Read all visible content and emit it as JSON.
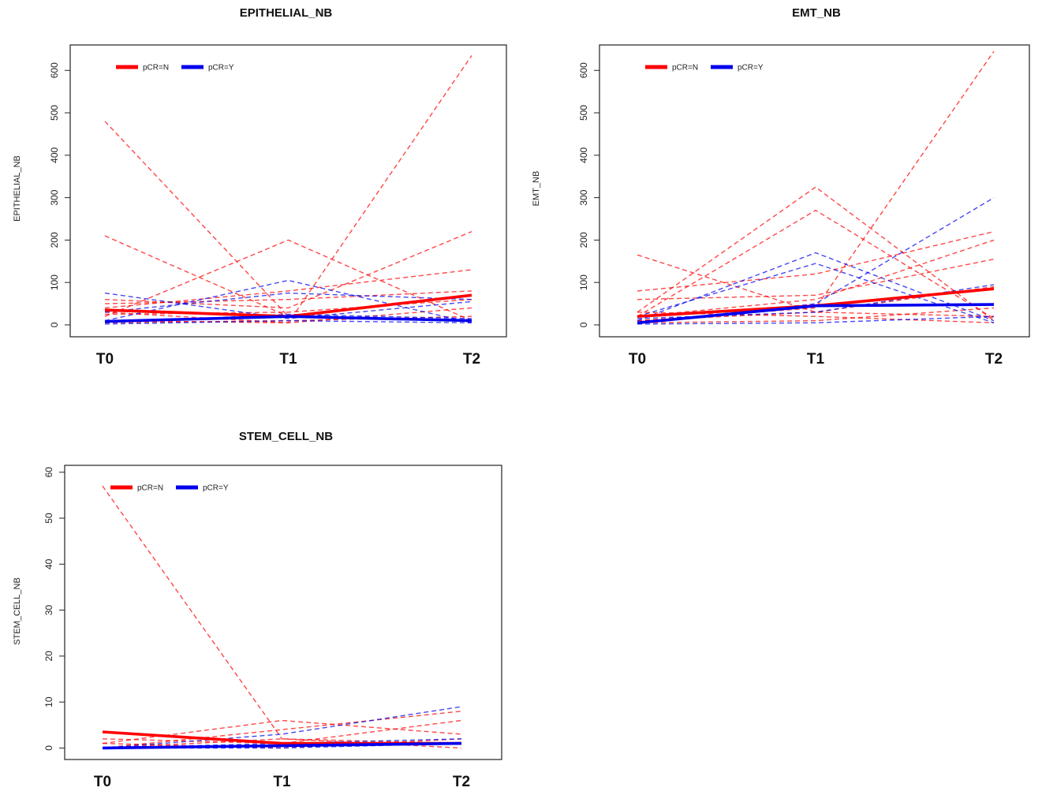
{
  "colors": {
    "group_n": "#ff0000",
    "group_y": "#0000ee"
  },
  "chart_data": [
    {
      "type": "line",
      "title": "EPITHELIAL_NB",
      "ylabel": "EPITHELIAL_NB",
      "categories": [
        "T0",
        "T1",
        "T2"
      ],
      "yticks": [
        0,
        100,
        200,
        300,
        400,
        500,
        600
      ],
      "ylim": [
        -28,
        660
      ],
      "legend": {
        "position": "top-left",
        "entries": [
          "pCR=N",
          "pCR=Y"
        ]
      },
      "grid": false,
      "series": [
        {
          "group": "N",
          "style": "mean",
          "values": [
            35,
            20,
            70
          ]
        },
        {
          "group": "Y",
          "style": "mean",
          "values": [
            8,
            20,
            10
          ]
        },
        {
          "group": "N",
          "style": "individual",
          "values": [
            480,
            20,
            10
          ]
        },
        {
          "group": "N",
          "style": "individual",
          "values": [
            210,
            20,
            10
          ]
        },
        {
          "group": "N",
          "style": "individual",
          "values": [
            20,
            200,
            10
          ]
        },
        {
          "group": "N",
          "style": "individual",
          "values": [
            30,
            5,
            635
          ]
        },
        {
          "group": "N",
          "style": "individual",
          "values": [
            60,
            40,
            220
          ]
        },
        {
          "group": "N",
          "style": "individual",
          "values": [
            40,
            80,
            130
          ]
        },
        {
          "group": "N",
          "style": "individual",
          "values": [
            50,
            60,
            80
          ]
        },
        {
          "group": "N",
          "style": "individual",
          "values": [
            25,
            30,
            60
          ]
        },
        {
          "group": "N",
          "style": "individual",
          "values": [
            10,
            5,
            40
          ]
        },
        {
          "group": "N",
          "style": "individual",
          "values": [
            5,
            10,
            20
          ]
        },
        {
          "group": "Y",
          "style": "individual",
          "values": [
            75,
            15,
            55
          ]
        },
        {
          "group": "Y",
          "style": "individual",
          "values": [
            10,
            105,
            5
          ]
        },
        {
          "group": "Y",
          "style": "individual",
          "values": [
            30,
            75,
            60
          ]
        },
        {
          "group": "Y",
          "style": "individual",
          "values": [
            5,
            25,
            15
          ]
        },
        {
          "group": "Y",
          "style": "individual",
          "values": [
            2,
            10,
            5
          ]
        }
      ]
    },
    {
      "type": "line",
      "title": "EMT_NB",
      "ylabel": "EMT_NB",
      "categories": [
        "T0",
        "T1",
        "T2"
      ],
      "yticks": [
        0,
        100,
        200,
        300,
        400,
        500,
        600
      ],
      "ylim": [
        -28,
        660
      ],
      "legend": {
        "position": "top-left",
        "entries": [
          "pCR=N",
          "pCR=Y"
        ]
      },
      "grid": false,
      "series": [
        {
          "group": "N",
          "style": "mean",
          "values": [
            20,
            45,
            85
          ]
        },
        {
          "group": "Y",
          "style": "mean",
          "values": [
            5,
            45,
            48
          ]
        },
        {
          "group": "N",
          "style": "individual",
          "values": [
            165,
            30,
            20
          ]
        },
        {
          "group": "N",
          "style": "individual",
          "values": [
            30,
            325,
            10
          ]
        },
        {
          "group": "N",
          "style": "individual",
          "values": [
            20,
            270,
            15
          ]
        },
        {
          "group": "N",
          "style": "individual",
          "values": [
            10,
            40,
            645
          ]
        },
        {
          "group": "N",
          "style": "individual",
          "values": [
            80,
            120,
            220
          ]
        },
        {
          "group": "N",
          "style": "individual",
          "values": [
            20,
            60,
            200
          ]
        },
        {
          "group": "N",
          "style": "individual",
          "values": [
            60,
            70,
            155
          ]
        },
        {
          "group": "N",
          "style": "individual",
          "values": [
            10,
            30,
            90
          ]
        },
        {
          "group": "N",
          "style": "individual",
          "values": [
            30,
            20,
            5
          ]
        },
        {
          "group": "N",
          "style": "individual",
          "values": [
            5,
            10,
            40
          ]
        },
        {
          "group": "Y",
          "style": "individual",
          "values": [
            10,
            170,
            10
          ]
        },
        {
          "group": "Y",
          "style": "individual",
          "values": [
            20,
            145,
            5
          ]
        },
        {
          "group": "Y",
          "style": "individual",
          "values": [
            5,
            50,
            300
          ]
        },
        {
          "group": "Y",
          "style": "individual",
          "values": [
            15,
            30,
            95
          ]
        },
        {
          "group": "Y",
          "style": "individual",
          "values": [
            2,
            5,
            20
          ]
        }
      ]
    },
    {
      "type": "line",
      "title": "STEM_CELL_NB",
      "ylabel": "STEM_CELL_NB",
      "categories": [
        "T0",
        "T1",
        "T2"
      ],
      "yticks": [
        0,
        10,
        20,
        30,
        40,
        50,
        60
      ],
      "ylim": [
        -2.5,
        61.5
      ],
      "legend": {
        "position": "top-left",
        "entries": [
          "pCR=N",
          "pCR=Y"
        ]
      },
      "grid": false,
      "series": [
        {
          "group": "N",
          "style": "mean",
          "values": [
            3.5,
            1,
            1
          ]
        },
        {
          "group": "Y",
          "style": "mean",
          "values": [
            0,
            0.5,
            1
          ]
        },
        {
          "group": "N",
          "style": "individual",
          "values": [
            57,
            2,
            0
          ]
        },
        {
          "group": "N",
          "style": "individual",
          "values": [
            1,
            6,
            3
          ]
        },
        {
          "group": "N",
          "style": "individual",
          "values": [
            0,
            4,
            8
          ]
        },
        {
          "group": "N",
          "style": "individual",
          "values": [
            2,
            1,
            6
          ]
        },
        {
          "group": "N",
          "style": "individual",
          "values": [
            0,
            2,
            1
          ]
        },
        {
          "group": "N",
          "style": "individual",
          "values": [
            1,
            0,
            2
          ]
        },
        {
          "group": "Y",
          "style": "individual",
          "values": [
            0,
            3,
            9
          ]
        },
        {
          "group": "Y",
          "style": "individual",
          "values": [
            0,
            1,
            2
          ]
        },
        {
          "group": "Y",
          "style": "individual",
          "values": [
            0,
            0,
            1
          ]
        }
      ]
    }
  ]
}
